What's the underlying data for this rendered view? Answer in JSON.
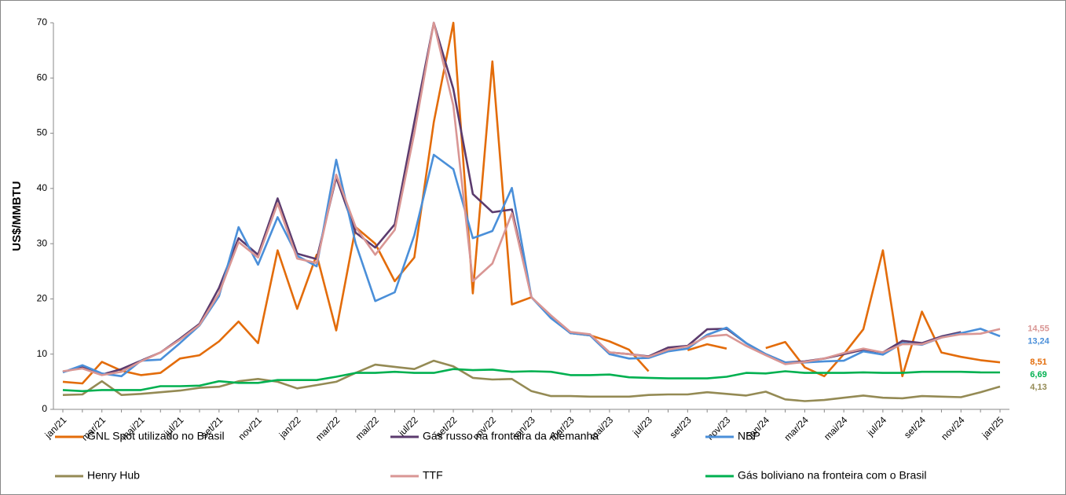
{
  "chart_data": {
    "type": "line",
    "y_label": "US$/MMBTU",
    "categories": [
      "jan/21",
      null,
      "mar/21",
      null,
      "mai/21",
      null,
      "jul/21",
      null,
      "set/21",
      null,
      "nov/21",
      null,
      "jan/22",
      null,
      "mar/22",
      null,
      "mai/22",
      null,
      "jul/22",
      null,
      "set/22",
      null,
      "nov/22",
      null,
      "jan/23",
      null,
      "mar/23",
      null,
      "mai/23",
      null,
      "jul/23",
      null,
      "set/23",
      null,
      "nov/23",
      null,
      "jan/24",
      null,
      "mar/24",
      null,
      "mai/24",
      null,
      "jul/24",
      null,
      "set/24",
      null,
      "nov/24",
      null,
      "jan/25"
    ],
    "ylim": [
      0,
      70
    ],
    "yticks": [
      0,
      10,
      20,
      30,
      40,
      50,
      60,
      70
    ],
    "grid": false,
    "legend": "bottom",
    "series": [
      {
        "name": "GNL Spot utilizado no Brasil",
        "color": "#e36c0a",
        "values": [
          5.0,
          4.7,
          8.6,
          7.0,
          6.2,
          6.6,
          9.2,
          9.8,
          12.3,
          15.9,
          12.0,
          28.8,
          18.2,
          28.0,
          14.3,
          33.0,
          30.0,
          23.2,
          27.5,
          52.0,
          70.0,
          21.0,
          63.0,
          19.0,
          20.3,
          16.8,
          13.8,
          13.4,
          12.3,
          10.8,
          6.9,
          null,
          10.7,
          11.8,
          11.0,
          null,
          11.1,
          12.2,
          7.6,
          6.0,
          10.0,
          14.5,
          28.8,
          6.0,
          17.7,
          10.3,
          9.5,
          8.9,
          8.51
        ],
        "value_labels": [
          null,
          null,
          null,
          null,
          null,
          null,
          null,
          null,
          null,
          null,
          null,
          null,
          null,
          null,
          null,
          null,
          null,
          null,
          null,
          null,
          null,
          null,
          null,
          null,
          null,
          null,
          null,
          null,
          null,
          null,
          null,
          null,
          null,
          null,
          null,
          null,
          null,
          null,
          null,
          null,
          null,
          null,
          null,
          null,
          null,
          null,
          null,
          null,
          "8,51"
        ]
      },
      {
        "name": "Gás russo na fronteira da Alemanha",
        "color": "#5b3b6e",
        "values": [
          6.8,
          7.6,
          6.3,
          7.3,
          8.8,
          10.3,
          12.8,
          15.5,
          22.0,
          31.0,
          28.0,
          38.2,
          28.2,
          27.2,
          42.0,
          32.0,
          29.3,
          33.5,
          52.0,
          70.0,
          58.0,
          39.0,
          35.7,
          36.2,
          20.3,
          16.8,
          13.8,
          13.5,
          10.3,
          10.0,
          9.6,
          11.2,
          11.5,
          14.5,
          14.6,
          12.0,
          10.0,
          8.5,
          8.7,
          9.2,
          10.0,
          10.8,
          10.3,
          12.4,
          12.0,
          13.2,
          14.0,
          null,
          null
        ]
      },
      {
        "name": "NBP",
        "color": "#4a8fd9",
        "values": [
          6.7,
          8.0,
          6.5,
          6.0,
          8.8,
          9.0,
          12.0,
          15.2,
          20.5,
          33.0,
          26.2,
          34.8,
          27.8,
          25.9,
          45.2,
          30.0,
          19.6,
          21.2,
          31.5,
          46.1,
          43.5,
          31.0,
          32.3,
          40.1,
          20.3,
          16.5,
          13.8,
          13.4,
          10.0,
          9.2,
          9.3,
          10.5,
          11.0,
          13.5,
          14.8,
          12.0,
          10.0,
          8.5,
          8.5,
          8.7,
          8.8,
          10.5,
          9.9,
          12.0,
          11.7,
          13.0,
          13.8,
          14.6,
          13.24
        ],
        "value_labels": [
          null,
          null,
          null,
          null,
          null,
          null,
          null,
          null,
          null,
          null,
          null,
          null,
          null,
          null,
          null,
          null,
          null,
          null,
          null,
          null,
          null,
          null,
          null,
          null,
          null,
          null,
          null,
          null,
          null,
          null,
          null,
          null,
          null,
          null,
          null,
          null,
          null,
          null,
          null,
          null,
          null,
          null,
          null,
          null,
          null,
          null,
          null,
          null,
          "13,24"
        ]
      },
      {
        "name": "Henry Hub",
        "color": "#948a54",
        "values": [
          2.6,
          2.7,
          5.1,
          2.6,
          2.8,
          3.1,
          3.4,
          3.9,
          4.1,
          5.1,
          5.5,
          5.0,
          3.8,
          4.4,
          5.0,
          6.6,
          8.1,
          7.7,
          7.3,
          8.8,
          7.8,
          5.7,
          5.4,
          5.5,
          3.3,
          2.4,
          2.4,
          2.3,
          2.3,
          2.3,
          2.6,
          2.7,
          2.7,
          3.1,
          2.8,
          2.5,
          3.2,
          1.8,
          1.5,
          1.7,
          2.1,
          2.5,
          2.1,
          2.0,
          2.4,
          2.3,
          2.2,
          3.1,
          4.13
        ],
        "value_labels": [
          null,
          null,
          null,
          null,
          null,
          null,
          null,
          null,
          null,
          null,
          null,
          null,
          null,
          null,
          null,
          null,
          null,
          null,
          null,
          null,
          null,
          null,
          null,
          null,
          null,
          null,
          null,
          null,
          null,
          null,
          null,
          null,
          null,
          null,
          null,
          null,
          null,
          null,
          null,
          null,
          null,
          null,
          null,
          null,
          null,
          null,
          null,
          null,
          "4,13"
        ]
      },
      {
        "name": "TTF",
        "color": "#d99694",
        "values": [
          6.9,
          7.4,
          6.2,
          6.8,
          8.7,
          10.3,
          12.6,
          15.3,
          21.0,
          30.3,
          27.5,
          37.3,
          27.3,
          26.5,
          42.5,
          33.0,
          28.0,
          32.5,
          50.0,
          70.0,
          55.0,
          23.2,
          26.4,
          35.5,
          20.3,
          17.0,
          14.0,
          13.6,
          10.3,
          10.0,
          9.5,
          10.8,
          11.4,
          13.2,
          13.5,
          11.5,
          9.8,
          8.2,
          8.6,
          9.2,
          10.2,
          11.0,
          10.3,
          11.8,
          11.8,
          13.0,
          13.6,
          13.7,
          14.55
        ],
        "value_labels": [
          null,
          null,
          null,
          null,
          null,
          null,
          null,
          null,
          null,
          null,
          null,
          null,
          null,
          null,
          null,
          null,
          null,
          null,
          null,
          null,
          null,
          null,
          null,
          null,
          null,
          null,
          null,
          null,
          null,
          null,
          null,
          null,
          null,
          null,
          null,
          null,
          null,
          null,
          null,
          null,
          null,
          null,
          null,
          null,
          null,
          null,
          null,
          null,
          "14,55"
        ]
      },
      {
        "name": "Gás boliviano na fronteira com o Brasil",
        "color": "#00b050",
        "values": [
          3.5,
          3.3,
          3.5,
          3.5,
          3.5,
          4.2,
          4.2,
          4.3,
          5.1,
          4.8,
          4.8,
          5.3,
          5.3,
          5.3,
          5.9,
          6.6,
          6.6,
          6.8,
          6.6,
          6.6,
          7.3,
          7.1,
          7.2,
          6.8,
          6.9,
          6.8,
          6.2,
          6.2,
          6.3,
          5.8,
          5.7,
          5.6,
          5.6,
          5.6,
          5.9,
          6.6,
          6.5,
          6.9,
          6.6,
          6.6,
          6.6,
          6.7,
          6.6,
          6.6,
          6.8,
          6.8,
          6.8,
          6.7,
          6.69
        ],
        "value_labels": [
          null,
          null,
          null,
          null,
          null,
          null,
          null,
          null,
          null,
          null,
          null,
          null,
          null,
          null,
          null,
          null,
          null,
          null,
          null,
          null,
          null,
          null,
          null,
          null,
          null,
          null,
          null,
          null,
          null,
          null,
          null,
          null,
          null,
          null,
          null,
          null,
          null,
          null,
          null,
          null,
          null,
          null,
          null,
          null,
          null,
          null,
          null,
          null,
          "6,69"
        ]
      }
    ]
  }
}
